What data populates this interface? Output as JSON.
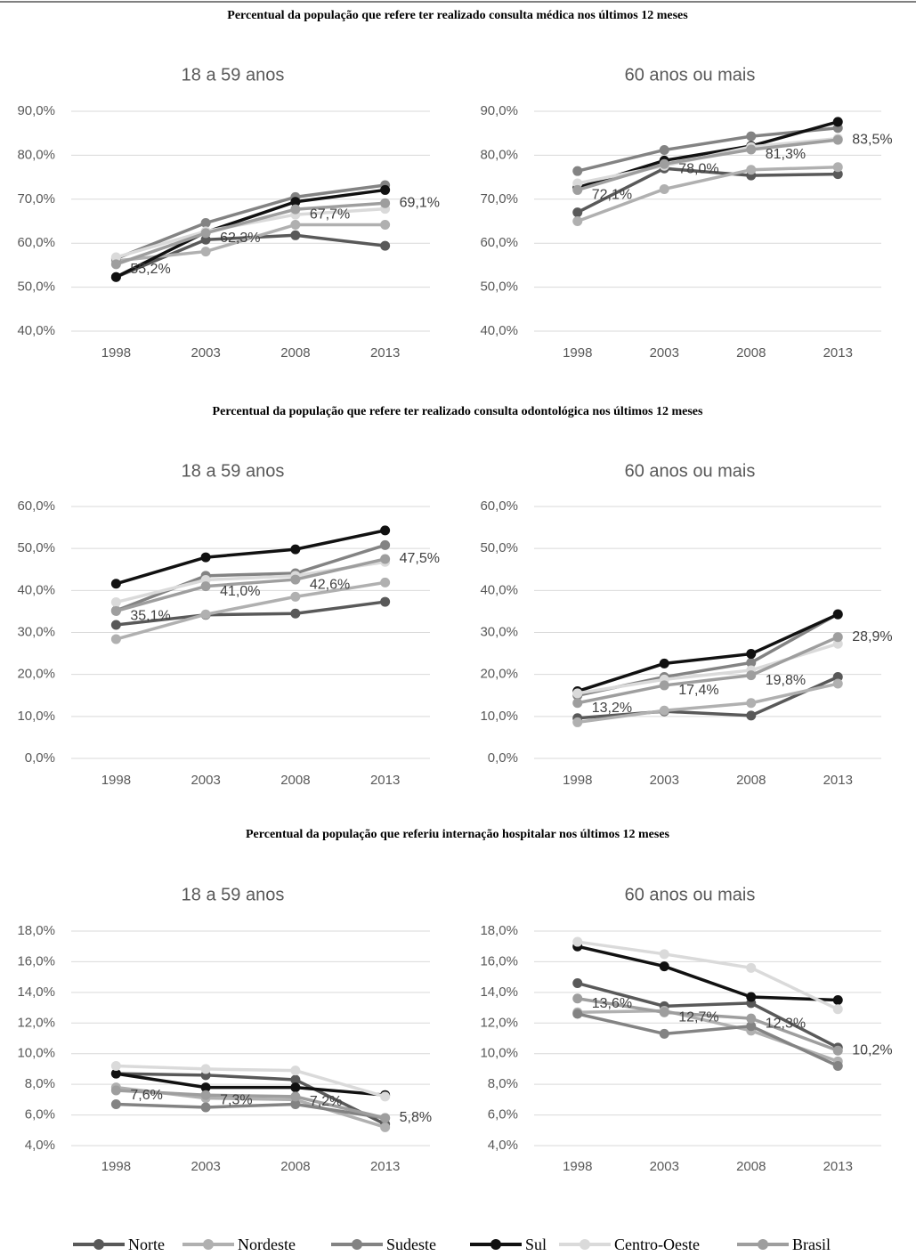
{
  "section_titles": [
    "Percentual da população que refere ter realizado consulta médica nos últimos 12 meses",
    "Percentual da população que refere ter realizado consulta odontológica nos últimos 12 meses",
    "Percentual da população que referiu internação hospitalar nos últimos 12 meses"
  ],
  "chart_data": [
    {
      "type": "line",
      "title": "18 a 59 anos",
      "categories": [
        "1998",
        "2003",
        "2008",
        "2013"
      ],
      "ylim": [
        40,
        90
      ],
      "yticks": [
        {
          "value": 40,
          "label": "40,0%"
        },
        {
          "value": 50,
          "label": "50,0%"
        },
        {
          "value": 60,
          "label": "60,0%"
        },
        {
          "value": 70,
          "label": "70,0%"
        },
        {
          "value": 80,
          "label": "80,0%"
        },
        {
          "value": 90,
          "label": "90,0%"
        }
      ],
      "grid": true,
      "series": [
        {
          "name": "Norte",
          "color": "#595959",
          "values": [
            52.3,
            60.8,
            61.8,
            59.4
          ]
        },
        {
          "name": "Nordeste",
          "color": "#b0b0b0",
          "values": [
            56.0,
            58.1,
            64.2,
            64.2
          ]
        },
        {
          "name": "Sudeste",
          "color": "#838383",
          "values": [
            56.5,
            64.6,
            70.5,
            73.2
          ]
        },
        {
          "name": "Sul",
          "color": "#111111",
          "values": [
            52.3,
            62.5,
            69.4,
            72.1
          ]
        },
        {
          "name": "Centro-Oeste",
          "color": "#dadada",
          "values": [
            56.8,
            62.7,
            66.5,
            67.8
          ]
        },
        {
          "name": "Brasil",
          "color": "#9e9e9e",
          "values": [
            55.2,
            62.3,
            67.7,
            69.1
          ],
          "value_labels": [
            "55,2%",
            "62,3%",
            "67,7%",
            "69,1%"
          ]
        }
      ]
    },
    {
      "type": "line",
      "title": "60 anos ou mais",
      "categories": [
        "1998",
        "2003",
        "2008",
        "2013"
      ],
      "ylim": [
        40,
        90
      ],
      "yticks": [
        {
          "value": 40,
          "label": "40,0%"
        },
        {
          "value": 50,
          "label": "50,0%"
        },
        {
          "value": 60,
          "label": "60,0%"
        },
        {
          "value": 70,
          "label": "70,0%"
        },
        {
          "value": 80,
          "label": "80,0%"
        },
        {
          "value": 90,
          "label": "90,0%"
        }
      ],
      "grid": true,
      "series": [
        {
          "name": "Norte",
          "color": "#595959",
          "values": [
            67.0,
            77.0,
            75.4,
            75.7
          ]
        },
        {
          "name": "Nordeste",
          "color": "#b0b0b0",
          "values": [
            65.0,
            72.3,
            76.7,
            77.3
          ]
        },
        {
          "name": "Sudeste",
          "color": "#838383",
          "values": [
            76.4,
            81.2,
            84.3,
            86.2
          ]
        },
        {
          "name": "Sul",
          "color": "#111111",
          "values": [
            72.6,
            78.8,
            82.1,
            87.6
          ]
        },
        {
          "name": "Centro-Oeste",
          "color": "#dadada",
          "values": [
            73.6,
            77.6,
            81.9,
            83.8
          ]
        },
        {
          "name": "Brasil",
          "color": "#9e9e9e",
          "values": [
            72.1,
            78.0,
            81.3,
            83.5
          ],
          "value_labels": [
            "72,1%",
            "78,0%",
            "81,3%",
            "83,5%"
          ]
        }
      ]
    },
    {
      "type": "line",
      "title": "18 a 59 anos",
      "categories": [
        "1998",
        "2003",
        "2008",
        "2013"
      ],
      "ylim": [
        0,
        60
      ],
      "yticks": [
        {
          "value": 0,
          "label": "0,0%"
        },
        {
          "value": 10,
          "label": "10,0%"
        },
        {
          "value": 20,
          "label": "20,0%"
        },
        {
          "value": 30,
          "label": "30,0%"
        },
        {
          "value": 40,
          "label": "40,0%"
        },
        {
          "value": 50,
          "label": "50,0%"
        },
        {
          "value": 60,
          "label": "60,0%"
        }
      ],
      "grid": true,
      "series": [
        {
          "name": "Norte",
          "color": "#595959",
          "values": [
            31.8,
            34.2,
            34.5,
            37.3
          ]
        },
        {
          "name": "Nordeste",
          "color": "#b0b0b0",
          "values": [
            28.4,
            34.3,
            38.5,
            41.9
          ]
        },
        {
          "name": "Sudeste",
          "color": "#838383",
          "values": [
            35.2,
            43.5,
            44.1,
            50.8
          ]
        },
        {
          "name": "Sul",
          "color": "#111111",
          "values": [
            41.6,
            47.9,
            49.8,
            54.3
          ]
        },
        {
          "name": "Centro-Oeste",
          "color": "#dadada",
          "values": [
            37.2,
            42.5,
            43.5,
            46.8
          ]
        },
        {
          "name": "Brasil",
          "color": "#9e9e9e",
          "values": [
            35.1,
            41.0,
            42.6,
            47.5
          ],
          "value_labels": [
            "35,1%",
            "41,0%",
            "42,6%",
            "47,5%"
          ]
        }
      ]
    },
    {
      "type": "line",
      "title": "60 anos ou mais",
      "categories": [
        "1998",
        "2003",
        "2008",
        "2013"
      ],
      "ylim": [
        0,
        60
      ],
      "yticks": [
        {
          "value": 0,
          "label": "0,0%"
        },
        {
          "value": 10,
          "label": "10,0%"
        },
        {
          "value": 20,
          "label": "20,0%"
        },
        {
          "value": 30,
          "label": "30,0%"
        },
        {
          "value": 40,
          "label": "40,0%"
        },
        {
          "value": 50,
          "label": "50,0%"
        },
        {
          "value": 60,
          "label": "60,0%"
        }
      ],
      "grid": true,
      "series": [
        {
          "name": "Norte",
          "color": "#595959",
          "values": [
            9.6,
            11.2,
            10.2,
            19.4
          ]
        },
        {
          "name": "Nordeste",
          "color": "#b0b0b0",
          "values": [
            8.6,
            11.4,
            13.2,
            17.8
          ]
        },
        {
          "name": "Sudeste",
          "color": "#838383",
          "values": [
            15.0,
            19.4,
            22.8,
            34.4
          ]
        },
        {
          "name": "Sul",
          "color": "#111111",
          "values": [
            16.0,
            22.6,
            24.9,
            34.3
          ]
        },
        {
          "name": "Centro-Oeste",
          "color": "#dadada",
          "values": [
            15.5,
            18.8,
            21.0,
            27.3
          ]
        },
        {
          "name": "Brasil",
          "color": "#9e9e9e",
          "values": [
            13.2,
            17.4,
            19.8,
            28.9
          ],
          "value_labels": [
            "13,2%",
            "17,4%",
            "19,8%",
            "28,9%"
          ]
        }
      ]
    },
    {
      "type": "line",
      "title": "18 a 59 anos",
      "categories": [
        "1998",
        "2003",
        "2008",
        "2013"
      ],
      "ylim": [
        4,
        18
      ],
      "yticks": [
        {
          "value": 4,
          "label": "4,0%"
        },
        {
          "value": 6,
          "label": "6,0%"
        },
        {
          "value": 8,
          "label": "8,0%"
        },
        {
          "value": 10,
          "label": "10,0%"
        },
        {
          "value": 12,
          "label": "12,0%"
        },
        {
          "value": 14,
          "label": "14,0%"
        },
        {
          "value": 16,
          "label": "16,0%"
        },
        {
          "value": 18,
          "label": "18,0%"
        }
      ],
      "grid": true,
      "series": [
        {
          "name": "Norte",
          "color": "#595959",
          "values": [
            8.7,
            8.6,
            8.3,
            5.4
          ]
        },
        {
          "name": "Nordeste",
          "color": "#b0b0b0",
          "values": [
            7.8,
            7.1,
            7.0,
            5.2
          ]
        },
        {
          "name": "Sudeste",
          "color": "#838383",
          "values": [
            6.7,
            6.5,
            6.7,
            5.8
          ]
        },
        {
          "name": "Sul",
          "color": "#111111",
          "values": [
            8.7,
            7.8,
            7.8,
            7.3
          ]
        },
        {
          "name": "Centro-Oeste",
          "color": "#dadada",
          "values": [
            9.2,
            9.0,
            8.9,
            7.2
          ]
        },
        {
          "name": "Brasil",
          "color": "#9e9e9e",
          "values": [
            7.6,
            7.3,
            7.2,
            5.8
          ],
          "value_labels": [
            "7,6%",
            "7,3%",
            "7,2%",
            "5,8%"
          ]
        }
      ]
    },
    {
      "type": "line",
      "title": "60 anos ou mais",
      "categories": [
        "1998",
        "2003",
        "2008",
        "2013"
      ],
      "ylim": [
        4,
        18
      ],
      "yticks": [
        {
          "value": 4,
          "label": "4,0%"
        },
        {
          "value": 6,
          "label": "6,0%"
        },
        {
          "value": 8,
          "label": "8,0%"
        },
        {
          "value": 10,
          "label": "10,0%"
        },
        {
          "value": 12,
          "label": "12,0%"
        },
        {
          "value": 14,
          "label": "14,0%"
        },
        {
          "value": 16,
          "label": "16,0%"
        },
        {
          "value": 18,
          "label": "18,0%"
        }
      ],
      "grid": true,
      "series": [
        {
          "name": "Norte",
          "color": "#595959",
          "values": [
            14.6,
            13.1,
            13.3,
            10.4
          ]
        },
        {
          "name": "Nordeste",
          "color": "#b0b0b0",
          "values": [
            12.7,
            12.8,
            11.5,
            9.5
          ]
        },
        {
          "name": "Sudeste",
          "color": "#838383",
          "values": [
            12.6,
            11.3,
            11.8,
            9.2
          ]
        },
        {
          "name": "Sul",
          "color": "#111111",
          "values": [
            17.0,
            15.7,
            13.7,
            13.5
          ]
        },
        {
          "name": "Centro-Oeste",
          "color": "#dadada",
          "values": [
            17.3,
            16.5,
            15.6,
            12.9
          ]
        },
        {
          "name": "Brasil",
          "color": "#9e9e9e",
          "values": [
            13.6,
            12.7,
            12.3,
            10.2
          ],
          "value_labels": [
            "13,6%",
            "12,7%",
            "12,3%",
            "10,2%"
          ]
        }
      ]
    }
  ]
}
